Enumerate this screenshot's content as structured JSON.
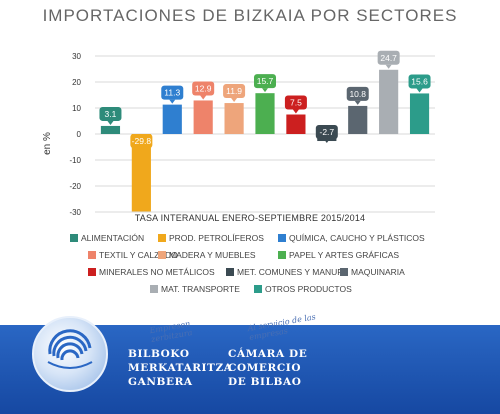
{
  "chart_data": {
    "type": "bar",
    "title": "IMPORTACIONES DE BIZKAIA POR SECTORES",
    "subtitle": "TASA INTERANUAL ENERO-SEPTIEMBRE 2015/2014",
    "ylabel": "en %",
    "xlabel": "",
    "ylim": [
      -30,
      30
    ],
    "yticks": [
      30,
      20,
      10,
      0,
      -10,
      -20,
      -30
    ],
    "grid": true,
    "legend_position": "bottom",
    "categories": [
      "ALIMENTACIÓN",
      "PROD. PETROLÍFEROS",
      "QUÍMICA, CAUCHO Y PLÁSTICOS",
      "TEXTIL Y CALZADO",
      "MADERA Y MUEBLES",
      "PAPEL Y ARTES GRÁFICAS",
      "MINERALES NO METÁLICOS",
      "MET. COMUNES Y MANUF.",
      "MAQUINARIA",
      "MAT. TRANSPORTE",
      "OTROS PRODUCTOS"
    ],
    "values": [
      3.1,
      -29.8,
      11.3,
      12.9,
      11.9,
      15.7,
      7.5,
      -2.7,
      10.8,
      24.7,
      15.6
    ],
    "data_labels": [
      "3.1",
      "-29.8",
      "11.3",
      "12.9",
      "11.9",
      "15.7",
      "7.5",
      "-2.7",
      "10.8",
      "24.7",
      "15.6"
    ],
    "colors": [
      "#2e8b7a",
      "#f0a81c",
      "#2f7fd0",
      "#ee836a",
      "#eea57b",
      "#4caf50",
      "#cc1f1f",
      "#3b4a52",
      "#5b6670",
      "#a9aeb3",
      "#2c9c8a"
    ]
  },
  "legend_rows": [
    [
      0,
      1,
      2
    ],
    [
      3,
      4,
      5
    ],
    [
      6,
      7,
      8
    ],
    [
      9,
      10
    ]
  ],
  "footer": {
    "left_lines": [
      "BILBOKO",
      "MERKATARITZA",
      "GANBERA"
    ],
    "right_lines": [
      "CÁMARA DE",
      "COMERCIO",
      "DE BILBAO"
    ],
    "slogan_left": "Empresen zerbitzura",
    "slogan_right": "Al servicio de las empresas"
  }
}
